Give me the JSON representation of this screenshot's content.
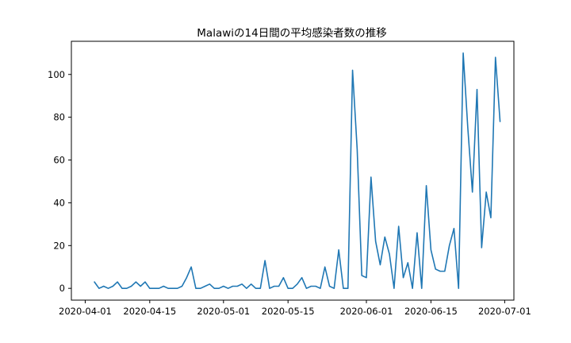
{
  "chart_data": {
    "type": "line",
    "title": "Malawiの14日間の平均感染者数の推移",
    "xlabel": "",
    "ylabel": "",
    "grid": false,
    "x_tick_labels": [
      "2020-04-01",
      "2020-04-15",
      "2020-05-01",
      "2020-05-15",
      "2020-06-01",
      "2020-06-15",
      "2020-07-01"
    ],
    "y_ticks": [
      0,
      20,
      40,
      60,
      80,
      100
    ],
    "xlim": [
      "2020-03-29",
      "2020-07-03"
    ],
    "ylim": [
      -5.5,
      115.5
    ],
    "line_color": "#1f77b4",
    "series": [
      {
        "x": [
          "2020-04-03",
          "2020-04-04",
          "2020-04-05",
          "2020-04-06",
          "2020-04-07",
          "2020-04-08",
          "2020-04-09",
          "2020-04-10",
          "2020-04-11",
          "2020-04-12",
          "2020-04-13",
          "2020-04-14",
          "2020-04-15",
          "2020-04-16",
          "2020-04-17",
          "2020-04-18",
          "2020-04-19",
          "2020-04-20",
          "2020-04-21",
          "2020-04-22",
          "2020-04-23",
          "2020-04-24",
          "2020-04-25",
          "2020-04-26",
          "2020-04-27",
          "2020-04-28",
          "2020-04-29",
          "2020-04-30",
          "2020-05-01",
          "2020-05-02",
          "2020-05-03",
          "2020-05-04",
          "2020-05-05",
          "2020-05-06",
          "2020-05-07",
          "2020-05-08",
          "2020-05-09",
          "2020-05-10",
          "2020-05-11",
          "2020-05-12",
          "2020-05-13",
          "2020-05-14",
          "2020-05-15",
          "2020-05-16",
          "2020-05-17",
          "2020-05-18",
          "2020-05-19",
          "2020-05-20",
          "2020-05-21",
          "2020-05-22",
          "2020-05-23",
          "2020-05-24",
          "2020-05-25",
          "2020-05-26",
          "2020-05-27",
          "2020-05-28",
          "2020-05-29",
          "2020-05-30",
          "2020-05-31",
          "2020-06-01",
          "2020-06-02",
          "2020-06-03",
          "2020-06-04",
          "2020-06-05",
          "2020-06-06",
          "2020-06-07",
          "2020-06-08",
          "2020-06-09",
          "2020-06-10",
          "2020-06-11",
          "2020-06-12",
          "2020-06-13",
          "2020-06-14",
          "2020-06-15",
          "2020-06-16",
          "2020-06-17",
          "2020-06-18",
          "2020-06-19",
          "2020-06-20",
          "2020-06-21",
          "2020-06-22",
          "2020-06-23",
          "2020-06-24",
          "2020-06-25",
          "2020-06-26",
          "2020-06-27",
          "2020-06-28",
          "2020-06-29",
          "2020-06-30"
        ],
        "y": [
          3,
          0,
          1,
          0,
          1,
          3,
          0,
          0,
          1,
          3,
          1,
          3,
          0,
          0,
          0,
          1,
          0,
          0,
          0,
          1,
          5,
          10,
          0,
          0,
          1,
          2,
          0,
          0,
          1,
          0,
          1,
          1,
          2,
          0,
          2,
          0,
          0,
          13,
          0,
          1,
          1,
          5,
          0,
          0,
          2,
          5,
          0,
          1,
          1,
          0,
          10,
          1,
          0,
          18,
          0,
          0,
          102,
          65,
          6,
          5,
          52,
          22,
          11,
          24,
          16,
          0,
          29,
          5,
          12,
          0,
          26,
          0,
          48,
          18,
          9,
          8,
          8,
          20,
          28,
          0,
          110,
          75,
          45,
          93,
          19,
          45,
          33,
          108,
          78
        ]
      }
    ]
  }
}
